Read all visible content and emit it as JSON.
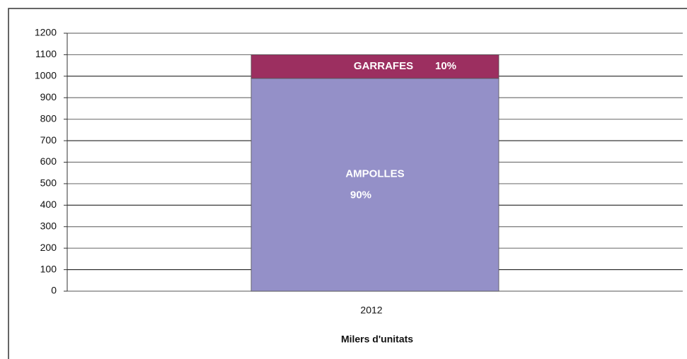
{
  "chart_data": {
    "type": "stacked-bar",
    "categories": [
      "2012"
    ],
    "series": [
      {
        "name": "AMPOLLES",
        "color": "#9490c8",
        "values": [
          990
        ],
        "share_labels": [
          "90%"
        ]
      },
      {
        "name": "GARRAFES",
        "color": "#9c2f60",
        "values": [
          110
        ],
        "share_labels": [
          "10%"
        ]
      }
    ],
    "xlabel": "Milers d'unitats",
    "ylim": [
      0,
      1200
    ],
    "yticks": [
      0,
      100,
      200,
      300,
      400,
      500,
      600,
      700,
      800,
      900,
      1000,
      1100,
      1200
    ],
    "grid": true
  }
}
